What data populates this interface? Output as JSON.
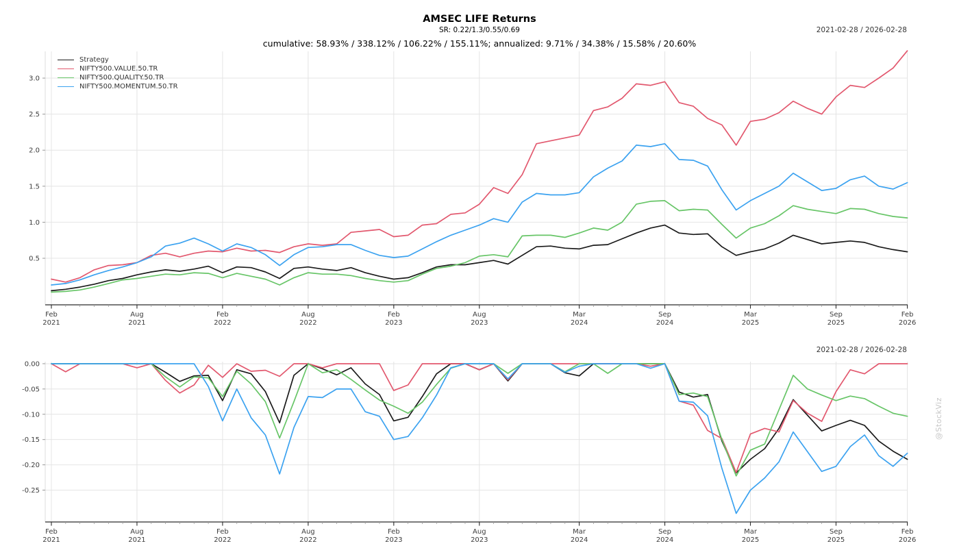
{
  "header": {
    "title": "AMSEC LIFE Returns",
    "subtitle": "SR: 0.22/1.3/0.55/0.69",
    "stats": "cumulative: 58.93% / 338.12% / 106.22% / 155.11%; annualized: 9.71% / 34.38% / 15.58% / 20.60%"
  },
  "watermark": "@StockViz",
  "chart_data": [
    {
      "type": "line",
      "panel": "cumulative-returns",
      "period_label": "2021-02-28 / 2026-02-28",
      "x_start": "2021-02",
      "x_end": "2026-02",
      "x_interval": "1 month",
      "n_points": 61,
      "x_tick_indices": [
        0,
        6,
        12,
        18,
        24,
        30,
        37,
        43,
        49,
        55,
        60
      ],
      "x_tick_labels": [
        [
          "Feb",
          "2021"
        ],
        [
          "Aug",
          "2021"
        ],
        [
          "Feb",
          "2022"
        ],
        [
          "Aug",
          "2022"
        ],
        [
          "Feb",
          "2023"
        ],
        [
          "Aug",
          "2023"
        ],
        [
          "Mar",
          "2024"
        ],
        [
          "Sep",
          "2024"
        ],
        [
          "Mar",
          "2025"
        ],
        [
          "Sep",
          "2025"
        ],
        [
          "Feb",
          "2026"
        ]
      ],
      "y_ticks": [
        {
          "v": 0.5,
          "label": "0.5"
        },
        {
          "v": 1.0,
          "label": "1.0"
        },
        {
          "v": 1.5,
          "label": "1.5"
        },
        {
          "v": 2.0,
          "label": "2.0"
        },
        {
          "v": 2.5,
          "label": "2.5"
        },
        {
          "v": 3.0,
          "label": "3.0"
        }
      ],
      "ylim": [
        -0.146,
        3.371
      ],
      "grid": true,
      "legend_position": "top-left",
      "series": [
        {
          "name": "Strategy",
          "color": "#1a1a1a",
          "values": [
            0.05,
            0.07,
            0.1,
            0.14,
            0.19,
            0.22,
            0.27,
            0.31,
            0.34,
            0.32,
            0.35,
            0.39,
            0.3,
            0.38,
            0.37,
            0.31,
            0.22,
            0.36,
            0.38,
            0.35,
            0.33,
            0.37,
            0.3,
            0.25,
            0.21,
            0.23,
            0.3,
            0.38,
            0.41,
            0.41,
            0.44,
            0.47,
            0.42,
            0.54,
            0.66,
            0.67,
            0.64,
            0.63,
            0.68,
            0.69,
            0.77,
            0.85,
            0.92,
            0.96,
            0.85,
            0.83,
            0.84,
            0.66,
            0.54,
            0.59,
            0.63,
            0.71,
            0.82,
            0.76,
            0.7,
            0.72,
            0.74,
            0.72,
            0.66,
            0.62,
            0.59
          ]
        },
        {
          "name": "NIFTY500.VALUE.50.TR",
          "color": "#e2586e",
          "values": [
            0.21,
            0.17,
            0.23,
            0.34,
            0.4,
            0.41,
            0.44,
            0.54,
            0.57,
            0.52,
            0.57,
            0.6,
            0.59,
            0.64,
            0.6,
            0.61,
            0.58,
            0.66,
            0.7,
            0.68,
            0.7,
            0.86,
            0.88,
            0.9,
            0.8,
            0.82,
            0.96,
            0.98,
            1.11,
            1.13,
            1.25,
            1.48,
            1.4,
            1.66,
            2.09,
            2.13,
            2.17,
            2.21,
            2.55,
            2.6,
            2.72,
            2.92,
            2.9,
            2.95,
            2.66,
            2.61,
            2.44,
            2.35,
            2.07,
            2.4,
            2.43,
            2.52,
            2.68,
            2.58,
            2.5,
            2.74,
            2.9,
            2.87,
            3.0,
            3.14,
            3.38
          ]
        },
        {
          "name": "NIFTY500.QUALITY.50.TR",
          "color": "#67c567",
          "values": [
            0.03,
            0.04,
            0.06,
            0.1,
            0.15,
            0.2,
            0.22,
            0.25,
            0.28,
            0.27,
            0.3,
            0.29,
            0.23,
            0.29,
            0.25,
            0.21,
            0.13,
            0.23,
            0.3,
            0.28,
            0.28,
            0.26,
            0.22,
            0.19,
            0.17,
            0.19,
            0.28,
            0.36,
            0.39,
            0.44,
            0.53,
            0.55,
            0.52,
            0.81,
            0.82,
            0.82,
            0.79,
            0.85,
            0.92,
            0.89,
            1.0,
            1.25,
            1.29,
            1.3,
            1.16,
            1.18,
            1.17,
            0.97,
            0.78,
            0.92,
            0.98,
            1.09,
            1.23,
            1.18,
            1.15,
            1.12,
            1.19,
            1.18,
            1.12,
            1.08,
            1.06
          ]
        },
        {
          "name": "NIFTY500.MOMENTUM.50.TR",
          "color": "#3ba2f0",
          "values": [
            0.13,
            0.15,
            0.2,
            0.27,
            0.33,
            0.38,
            0.44,
            0.52,
            0.67,
            0.71,
            0.78,
            0.7,
            0.6,
            0.7,
            0.65,
            0.55,
            0.4,
            0.55,
            0.65,
            0.66,
            0.69,
            0.69,
            0.61,
            0.54,
            0.51,
            0.53,
            0.63,
            0.73,
            0.82,
            0.89,
            0.96,
            1.05,
            1.0,
            1.28,
            1.4,
            1.38,
            1.38,
            1.41,
            1.63,
            1.75,
            1.85,
            2.07,
            2.05,
            2.09,
            1.87,
            1.86,
            1.78,
            1.45,
            1.17,
            1.3,
            1.4,
            1.5,
            1.68,
            1.56,
            1.44,
            1.47,
            1.59,
            1.64,
            1.5,
            1.46,
            1.55
          ]
        }
      ]
    },
    {
      "type": "line",
      "panel": "drawdown",
      "period_label": "2021-02-28 / 2026-02-28",
      "x_start": "2021-02",
      "x_end": "2026-02",
      "x_interval": "1 month",
      "n_points": 61,
      "x_tick_indices": [
        0,
        6,
        12,
        18,
        24,
        30,
        37,
        43,
        49,
        55,
        60
      ],
      "x_tick_labels": [
        [
          "Feb",
          "2021"
        ],
        [
          "Aug",
          "2021"
        ],
        [
          "Feb",
          "2022"
        ],
        [
          "Aug",
          "2022"
        ],
        [
          "Feb",
          "2023"
        ],
        [
          "Aug",
          "2023"
        ],
        [
          "Mar",
          "2024"
        ],
        [
          "Sep",
          "2024"
        ],
        [
          "Mar",
          "2025"
        ],
        [
          "Sep",
          "2025"
        ],
        [
          "Feb",
          "2026"
        ]
      ],
      "y_ticks": [
        {
          "v": 0.0,
          "label": "0.00"
        },
        {
          "v": -0.05,
          "label": "-0.05"
        },
        {
          "v": -0.1,
          "label": "-0.10"
        },
        {
          "v": -0.15,
          "label": "-0.15"
        },
        {
          "v": -0.2,
          "label": "-0.20"
        },
        {
          "v": -0.25,
          "label": "-0.25"
        }
      ],
      "ylim": [
        -0.313,
        0.004
      ],
      "grid": true,
      "legend_position": "none",
      "series": [
        {
          "name": "Strategy",
          "color": "#1a1a1a",
          "values": [
            0,
            0,
            0,
            0,
            0,
            0,
            0,
            0,
            -0.017,
            -0.035,
            -0.024,
            -0.023,
            -0.073,
            -0.012,
            -0.02,
            -0.055,
            -0.117,
            -0.023,
            0,
            -0.01,
            -0.022,
            -0.008,
            -0.04,
            -0.061,
            -0.113,
            -0.106,
            -0.065,
            -0.02,
            0,
            0,
            -0.012,
            0,
            -0.034,
            0,
            0,
            0,
            -0.018,
            -0.024,
            0,
            0,
            0,
            0,
            0,
            0,
            -0.056,
            -0.066,
            -0.061,
            -0.153,
            -0.216,
            -0.189,
            -0.168,
            -0.128,
            -0.071,
            -0.102,
            -0.133,
            -0.122,
            -0.112,
            -0.122,
            -0.153,
            -0.173,
            -0.189
          ]
        },
        {
          "name": "NIFTY500.VALUE.50.TR",
          "color": "#e2586e",
          "values": [
            0,
            -0.016,
            0,
            0,
            0,
            0,
            -0.008,
            0,
            -0.033,
            -0.058,
            -0.042,
            -0.003,
            -0.027,
            0,
            -0.015,
            -0.013,
            -0.025,
            0,
            0,
            -0.008,
            0,
            0,
            0,
            0,
            -0.053,
            -0.042,
            0,
            0,
            0,
            0,
            -0.012,
            0,
            -0.032,
            0,
            0,
            0,
            0,
            0,
            0,
            0,
            0,
            0,
            -0.005,
            0,
            -0.074,
            -0.082,
            -0.132,
            -0.148,
            -0.215,
            -0.139,
            -0.128,
            -0.135,
            -0.073,
            -0.098,
            -0.114,
            -0.055,
            -0.012,
            -0.02,
            0,
            0,
            0
          ]
        },
        {
          "name": "NIFTY500.QUALITY.50.TR",
          "color": "#67c567",
          "values": [
            0,
            0,
            0,
            0,
            0,
            0,
            0,
            0,
            -0.026,
            -0.046,
            -0.026,
            -0.028,
            -0.065,
            -0.015,
            -0.04,
            -0.075,
            -0.147,
            -0.075,
            0,
            -0.018,
            -0.012,
            -0.031,
            -0.052,
            -0.072,
            -0.084,
            -0.098,
            -0.076,
            -0.041,
            -0.009,
            0,
            0,
            0,
            -0.019,
            0,
            0,
            0,
            -0.016,
            0,
            0,
            -0.019,
            0,
            0,
            0,
            0,
            -0.061,
            -0.058,
            -0.065,
            -0.15,
            -0.222,
            -0.171,
            -0.159,
            -0.091,
            -0.023,
            -0.05,
            -0.062,
            -0.073,
            -0.064,
            -0.069,
            -0.084,
            -0.098,
            -0.104
          ]
        },
        {
          "name": "NIFTY500.MOMENTUM.50.TR",
          "color": "#3ba2f0",
          "values": [
            0,
            0,
            0,
            0,
            0,
            0,
            0,
            0,
            0,
            0,
            0,
            -0.045,
            -0.113,
            -0.05,
            -0.107,
            -0.141,
            -0.218,
            -0.126,
            -0.065,
            -0.067,
            -0.05,
            -0.05,
            -0.095,
            -0.104,
            -0.15,
            -0.144,
            -0.107,
            -0.062,
            -0.008,
            0,
            0,
            0,
            -0.03,
            0,
            0,
            0,
            -0.017,
            -0.005,
            0,
            0,
            0,
            0,
            -0.009,
            0,
            -0.074,
            -0.076,
            -0.103,
            -0.207,
            -0.296,
            -0.25,
            -0.226,
            -0.194,
            -0.135,
            -0.174,
            -0.213,
            -0.203,
            -0.164,
            -0.141,
            -0.182,
            -0.203,
            -0.177
          ]
        }
      ]
    }
  ],
  "style": {
    "grid_color": "#e4e4e4",
    "spine_color": "#2b2b2b",
    "minor_tick_color": "#999999",
    "tick_label_color": "#3c3c3c"
  }
}
